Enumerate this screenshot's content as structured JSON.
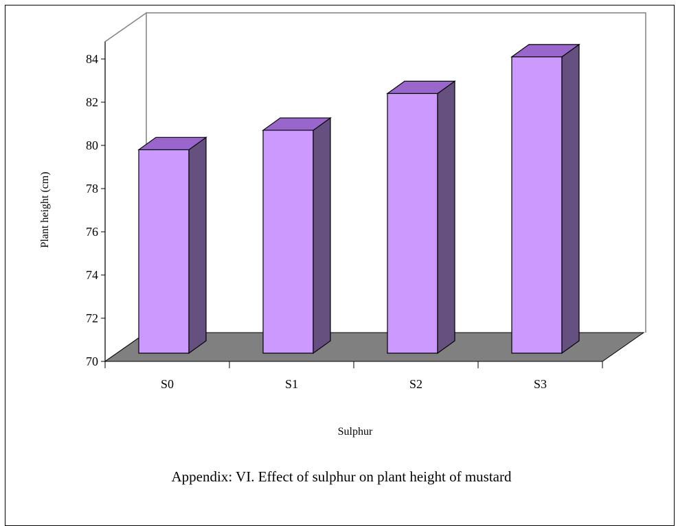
{
  "chart_data": {
    "type": "bar",
    "title": "",
    "caption": "Appendix: VI. Effect of sulphur on plant height of mustard",
    "xlabel": "Sulphur",
    "ylabel": "Plant height (cm)",
    "categories": [
      "S0",
      "S1",
      "S2",
      "S3"
    ],
    "values": [
      79.8,
      80.7,
      82.4,
      84.1
    ],
    "ylim": [
      70,
      84.8
    ],
    "yticks": [
      70,
      72,
      74,
      76,
      78,
      80,
      82,
      84
    ],
    "three_d": true,
    "grid": false,
    "legend": "none",
    "colors": {
      "bar_front": "#cc99ff",
      "bar_top": "#9966cc",
      "bar_side": "#66507f",
      "floor": "#808080",
      "wall": "#ffffff",
      "outline": "#000000"
    }
  }
}
